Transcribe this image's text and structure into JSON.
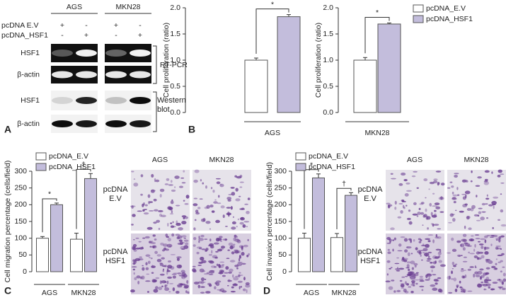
{
  "panel_labels": [
    "A",
    "B",
    "C",
    "D"
  ],
  "blot": {
    "columns": [
      "AGS",
      "MKN28"
    ],
    "rows": [
      {
        "label": "pcDNA E.V",
        "signs": [
          "+",
          "-",
          "+",
          "-"
        ]
      },
      {
        "label": "pcDNA_HSF1",
        "signs": [
          "-",
          "+",
          "-",
          "+"
        ]
      }
    ],
    "bands": [
      "HSF1",
      "β-actin",
      "HSF1",
      "β-actin"
    ],
    "methods": [
      "RT-PCR",
      "Western blot"
    ]
  },
  "micrographs": [
    {
      "columns": [
        "AGS",
        "MKN28"
      ],
      "rows": [
        "pcDNA E.V",
        "pcDNA HSF1"
      ]
    },
    {
      "columns": [
        "AGS",
        "MKN28"
      ],
      "rows": [
        "pcDNA E.V",
        "pcDNA HSF1"
      ]
    }
  ],
  "chart_data": [
    {
      "type": "bar",
      "ylabel": "Cell proliferation (ratio)",
      "categories": [
        "AGS"
      ],
      "ylim": [
        0,
        2
      ],
      "yticks": [
        {
          "value": 0,
          "label": "0.0"
        },
        {
          "value": 0.5,
          "label": "0.5"
        },
        {
          "value": 1,
          "label": "1.0"
        },
        {
          "value": 1.5,
          "label": "1.5"
        },
        {
          "value": 2,
          "label": "2.0"
        }
      ],
      "series": [
        {
          "color": "#ffffff",
          "values": [
            1.0
          ],
          "errors": [
            0.04
          ]
        },
        {
          "color": "#c3bddc",
          "values": [
            1.83
          ],
          "errors": [
            0.04
          ]
        }
      ],
      "annotations": [
        "*"
      ]
    },
    {
      "type": "bar",
      "ylabel": "Cell proliferation (ratio)",
      "categories": [
        "MKN28"
      ],
      "ylim": [
        0,
        2
      ],
      "yticks": [
        {
          "value": 0,
          "label": "0.0"
        },
        {
          "value": 0.5,
          "label": "0.5"
        },
        {
          "value": 1,
          "label": "1.0"
        },
        {
          "value": 1.5,
          "label": "1.5"
        },
        {
          "value": 2,
          "label": "2.0"
        }
      ],
      "series": [
        {
          "name": "pcDNA_E.V",
          "color": "#ffffff",
          "values": [
            1.0
          ],
          "errors": [
            0.05
          ]
        },
        {
          "name": "pcDNA_HSF1",
          "color": "#c3bddc",
          "values": [
            1.69
          ],
          "errors": [
            0.02
          ]
        }
      ],
      "annotations": [
        "*"
      ],
      "legend": "right"
    },
    {
      "type": "bar",
      "ylabel": "Cell migration percentage (cells/field)",
      "categories": [
        "AGS",
        "MKN28"
      ],
      "ylim": [
        0,
        300
      ],
      "yticks": [
        0,
        50,
        100,
        150,
        200,
        250,
        300
      ],
      "series": [
        {
          "name": "pcDNA_E.V",
          "color": "#ffffff",
          "values": [
            100,
            97
          ],
          "errors": [
            5,
            18
          ]
        },
        {
          "name": "pcDNA_HSF1",
          "color": "#c3bddc",
          "values": [
            200,
            278
          ],
          "errors": [
            5,
            15
          ]
        }
      ],
      "annotations": [
        "*",
        "†"
      ],
      "legend": "top-left"
    },
    {
      "type": "bar",
      "ylabel": "Cell invasion percentage (cells/field)",
      "categories": [
        "AGS",
        "MKN28"
      ],
      "ylim": [
        0,
        300
      ],
      "yticks": [
        0,
        50,
        100,
        150,
        200,
        250,
        300
      ],
      "series": [
        {
          "name": "pcDNA_E.V",
          "color": "#ffffff",
          "values": [
            100,
            102
          ],
          "errors": [
            15,
            12
          ]
        },
        {
          "name": "pcDNA_HSF1",
          "color": "#c3bddc",
          "values": [
            280,
            228
          ],
          "errors": [
            12,
            8
          ]
        }
      ],
      "annotations": [
        "*",
        "†"
      ],
      "legend": "top-left"
    }
  ]
}
